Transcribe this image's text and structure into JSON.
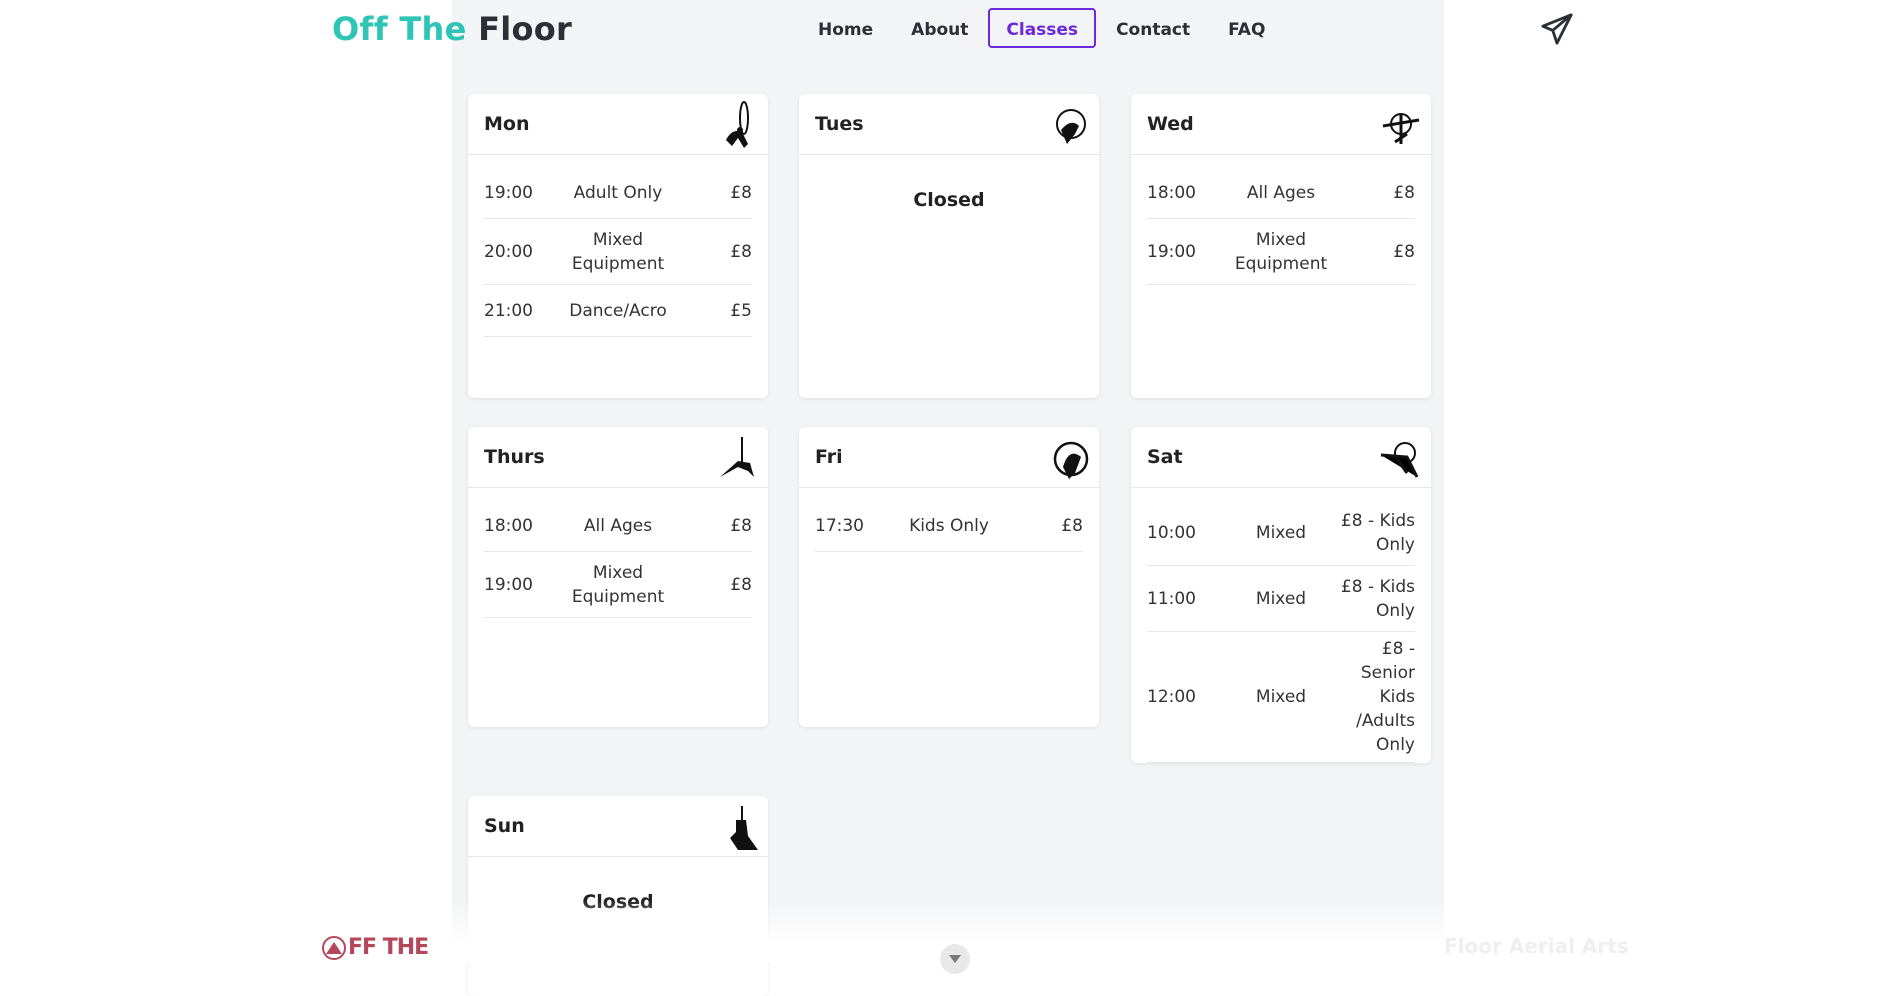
{
  "brand": {
    "accent": "Off The",
    "rest": "Floor"
  },
  "nav": {
    "items": [
      "Home",
      "About",
      "Classes",
      "Contact",
      "FAQ"
    ],
    "active": "Classes"
  },
  "schedule": {
    "mon": {
      "day": "Mon",
      "rows": [
        {
          "time": "19:00",
          "class": "Adult Only",
          "price": "£8"
        },
        {
          "time": "20:00",
          "class": "Mixed Equipment",
          "price": "£8"
        },
        {
          "time": "21:00",
          "class": "Dance/Acro",
          "price": "£5"
        }
      ]
    },
    "tues": {
      "day": "Tues",
      "closed": "Closed"
    },
    "wed": {
      "day": "Wed",
      "rows": [
        {
          "time": "18:00",
          "class": "All Ages",
          "price": "£8"
        },
        {
          "time": "19:00",
          "class": "Mixed Equipment",
          "price": "£8"
        }
      ]
    },
    "thurs": {
      "day": "Thurs",
      "rows": [
        {
          "time": "18:00",
          "class": "All Ages",
          "price": "£8"
        },
        {
          "time": "19:00",
          "class": "Mixed Equipment",
          "price": "£8"
        }
      ]
    },
    "fri": {
      "day": "Fri",
      "rows": [
        {
          "time": "17:30",
          "class": "Kids Only",
          "price": "£8"
        }
      ]
    },
    "sat": {
      "day": "Sat",
      "rows": [
        {
          "time": "10:00",
          "class": "Mixed",
          "price": "£8 - Kids Only"
        },
        {
          "time": "11:00",
          "class": "Mixed",
          "price": "£8 - Kids Only"
        },
        {
          "time": "12:00",
          "class": "Mixed",
          "price": "£8 - Senior Kids /Adults Only"
        }
      ]
    },
    "sun": {
      "day": "Sun",
      "closed": "Closed"
    }
  },
  "footer": {
    "logo_text": "FF THE",
    "right_text": "Floor Aerial Arts"
  },
  "icons": {
    "plane": "paper-plane-icon",
    "mon": "aerial-hoop-silhouette-icon",
    "tues": "aerial-hoop-silhouette-icon",
    "wed": "aerial-hoop-silhouette-icon",
    "thurs": "aerial-hoop-silhouette-icon",
    "fri": "aerial-hoop-silhouette-icon",
    "sat": "aerial-hoop-silhouette-icon",
    "sun": "aerial-hoop-silhouette-icon",
    "scroll": "chevron-down-icon"
  },
  "colors": {
    "accent": "#2ec4b6",
    "active_nav": "#6d28d9",
    "footer_logo": "#b5475a"
  }
}
